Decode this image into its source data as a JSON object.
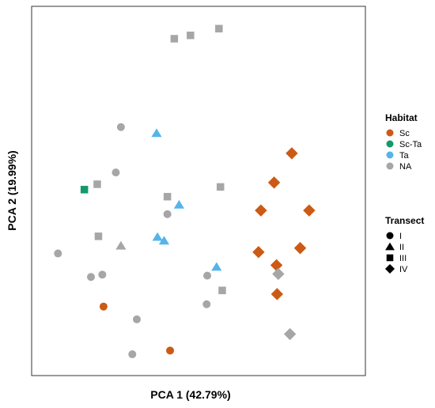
{
  "chart_data": {
    "type": "scatter",
    "xlabel": "PCA 1 (42.79%)",
    "ylabel": "PCA 2 (19.99%)",
    "xlim": [
      0,
      10
    ],
    "ylim": [
      0,
      10
    ],
    "grid": false,
    "legend_placement": "right",
    "legends": [
      {
        "title": "Habitat",
        "kind": "color",
        "entries": [
          {
            "label": "Sc",
            "color": "#cc5a14"
          },
          {
            "label": "Sc-Ta",
            "color": "#139a6a"
          },
          {
            "label": "Ta",
            "color": "#56b4e9"
          },
          {
            "label": "NA",
            "color": "#a6a6a6"
          }
        ]
      },
      {
        "title": "Transect",
        "kind": "shape",
        "entries": [
          {
            "label": "I",
            "shape": "circle"
          },
          {
            "label": "II",
            "shape": "triangle"
          },
          {
            "label": "III",
            "shape": "square"
          },
          {
            "label": "IV",
            "shape": "diamond"
          }
        ]
      }
    ],
    "points": [
      {
        "x": 4.31,
        "y": 9.53,
        "habitat": "NA",
        "transect": "III"
      },
      {
        "x": 4.85,
        "y": 9.63,
        "habitat": "NA",
        "transect": "III"
      },
      {
        "x": 5.8,
        "y": 9.83,
        "habitat": "NA",
        "transect": "III"
      },
      {
        "x": 2.53,
        "y": 6.9,
        "habitat": "NA",
        "transect": "I"
      },
      {
        "x": 3.72,
        "y": 6.72,
        "habitat": "Ta",
        "transect": "II"
      },
      {
        "x": 2.36,
        "y": 5.55,
        "habitat": "NA",
        "transect": "I"
      },
      {
        "x": 1.74,
        "y": 5.2,
        "habitat": "NA",
        "transect": "III"
      },
      {
        "x": 1.31,
        "y": 5.04,
        "habitat": "Sc-Ta",
        "transect": "III"
      },
      {
        "x": 4.08,
        "y": 4.83,
        "habitat": "NA",
        "transect": "III"
      },
      {
        "x": 4.47,
        "y": 4.59,
        "habitat": "Ta",
        "transect": "II"
      },
      {
        "x": 4.08,
        "y": 4.31,
        "habitat": "NA",
        "transect": "I"
      },
      {
        "x": 5.85,
        "y": 5.12,
        "habitat": "NA",
        "transect": "III"
      },
      {
        "x": 1.78,
        "y": 3.65,
        "habitat": "NA",
        "transect": "III"
      },
      {
        "x": 2.53,
        "y": 3.37,
        "habitat": "NA",
        "transect": "II"
      },
      {
        "x": 3.75,
        "y": 3.63,
        "habitat": "Ta",
        "transect": "II"
      },
      {
        "x": 3.97,
        "y": 3.52,
        "habitat": "Ta",
        "transect": "II"
      },
      {
        "x": 0.43,
        "y": 3.14,
        "habitat": "NA",
        "transect": "I"
      },
      {
        "x": 1.53,
        "y": 2.44,
        "habitat": "NA",
        "transect": "I"
      },
      {
        "x": 1.91,
        "y": 2.51,
        "habitat": "NA",
        "transect": "I"
      },
      {
        "x": 5.41,
        "y": 2.48,
        "habitat": "NA",
        "transect": "I"
      },
      {
        "x": 5.72,
        "y": 2.74,
        "habitat": "Ta",
        "transect": "II"
      },
      {
        "x": 5.91,
        "y": 2.04,
        "habitat": "NA",
        "transect": "III"
      },
      {
        "x": 5.39,
        "y": 1.63,
        "habitat": "NA",
        "transect": "I"
      },
      {
        "x": 1.95,
        "y": 1.56,
        "habitat": "Sc",
        "transect": "I"
      },
      {
        "x": 3.06,
        "y": 1.18,
        "habitat": "NA",
        "transect": "I"
      },
      {
        "x": 4.17,
        "y": 0.25,
        "habitat": "Sc",
        "transect": "I"
      },
      {
        "x": 2.91,
        "y": 0.14,
        "habitat": "NA",
        "transect": "I"
      },
      {
        "x": 8.23,
        "y": 6.12,
        "habitat": "Sc",
        "transect": "IV"
      },
      {
        "x": 7.64,
        "y": 5.25,
        "habitat": "Sc",
        "transect": "IV"
      },
      {
        "x": 7.2,
        "y": 4.42,
        "habitat": "Sc",
        "transect": "IV"
      },
      {
        "x": 8.81,
        "y": 4.42,
        "habitat": "Sc",
        "transect": "IV"
      },
      {
        "x": 7.12,
        "y": 3.18,
        "habitat": "Sc",
        "transect": "IV"
      },
      {
        "x": 8.51,
        "y": 3.3,
        "habitat": "Sc",
        "transect": "IV"
      },
      {
        "x": 7.72,
        "y": 2.79,
        "habitat": "Sc",
        "transect": "IV"
      },
      {
        "x": 7.78,
        "y": 2.53,
        "habitat": "NA",
        "transect": "IV"
      },
      {
        "x": 7.74,
        "y": 1.93,
        "habitat": "Sc",
        "transect": "IV"
      },
      {
        "x": 8.17,
        "y": 0.74,
        "habitat": "NA",
        "transect": "IV"
      }
    ]
  }
}
